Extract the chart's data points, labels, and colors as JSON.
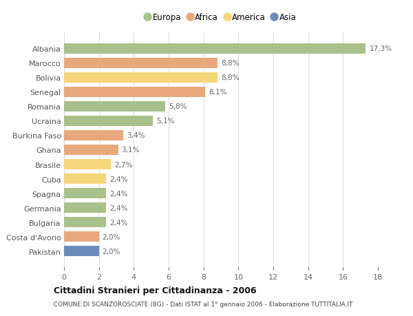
{
  "categories": [
    "Albania",
    "Marocco",
    "Bolivia",
    "Senegal",
    "Romania",
    "Ucraina",
    "Burkina Faso",
    "Ghana",
    "Brasile",
    "Cuba",
    "Spagna",
    "Germania",
    "Bulgaria",
    "Costa d'Avorio",
    "Pakistan"
  ],
  "values": [
    17.3,
    8.8,
    8.8,
    8.1,
    5.8,
    5.1,
    3.4,
    3.1,
    2.7,
    2.4,
    2.4,
    2.4,
    2.4,
    2.0,
    2.0
  ],
  "labels": [
    "17,3%",
    "8,8%",
    "8,8%",
    "8,1%",
    "5,8%",
    "5,1%",
    "3,4%",
    "3,1%",
    "2,7%",
    "2,4%",
    "2,4%",
    "2,4%",
    "2,4%",
    "2,0%",
    "2,0%"
  ],
  "continents": [
    "Europa",
    "Africa",
    "America",
    "Africa",
    "Europa",
    "Europa",
    "Africa",
    "Africa",
    "America",
    "America",
    "Europa",
    "Europa",
    "Europa",
    "Africa",
    "Asia"
  ],
  "colors": {
    "Europa": "#a8c08a",
    "Africa": "#e8a87c",
    "America": "#f5d67a",
    "Asia": "#6b8cba"
  },
  "title": "Cittadini Stranieri per Cittadinanza - 2006",
  "subtitle": "COMUNE DI SCANZOROSCIATE (BG) - Dati ISTAT al 1° gennaio 2006 - Elaborazione TUTTITALIA.IT",
  "xlim": [
    0,
    18
  ],
  "xticks": [
    0,
    2,
    4,
    6,
    8,
    10,
    12,
    14,
    16,
    18
  ],
  "bg_color": "#ffffff",
  "grid_color": "#dddddd",
  "bar_height": 0.72,
  "legend_order": [
    "Europa",
    "Africa",
    "America",
    "Asia"
  ]
}
